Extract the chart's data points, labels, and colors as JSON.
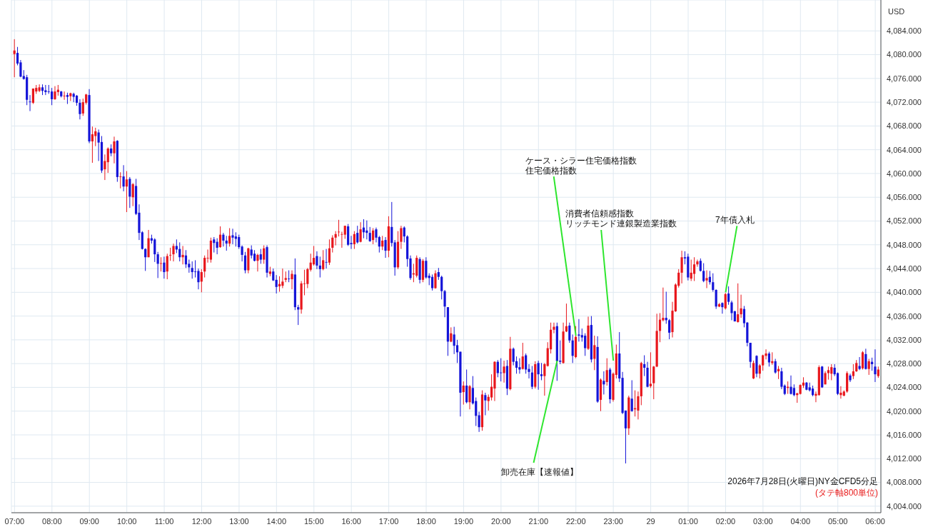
{
  "chart_data": {
    "type": "candlestick",
    "ylabel": "USD",
    "grid": true,
    "colors": [
      "#e8161c",
      "#1414d8",
      "#1414d8",
      "#1414d8",
      "#1414d8",
      "#1414d8",
      "#e8161c",
      "#e8161c",
      "#e8161c",
      "#1414d8",
      "#1414d8",
      "#1414d8",
      "#1414d8",
      "#e8161c",
      "#e8161c",
      "#1414d8",
      "#e8161c",
      "#1414d8",
      "#e8161c",
      "#1414d8",
      "#1414d8",
      "#1414d8",
      "#e8161c",
      "#e8161c",
      "#1414d8",
      "#e8161c",
      "#e8161c",
      "#1414d8",
      "#1414d8",
      "#e8161c",
      "#e8161c",
      "#1414d8",
      "#e8161c",
      "#1414d8",
      "#e8161c",
      "#1414d8",
      "#e8161c",
      "#1414d8",
      "#e8161c",
      "#1414d8",
      "#1414d8",
      "#1414d8",
      "#1414d8",
      "#e8161c",
      "#1414d8",
      "#1414d8",
      "#1414d8",
      "#e8161c",
      "#1414d8",
      "#e8161c",
      "#e8161c",
      "#e8161c",
      "#1414d8",
      "#1414d8",
      "#e8161c",
      "#1414d8",
      "#1414d8",
      "#1414d8",
      "#1414d8",
      "#1414d8",
      "#e8161c",
      "#e8161c",
      "#e8161c",
      "#e8161c",
      "#1414d8",
      "#1414d8",
      "#e8161c",
      "#1414d8",
      "#1414d8",
      "#e8161c",
      "#1414d8",
      "#1414d8",
      "#1414d8",
      "#1414d8",
      "#1414d8",
      "#e8161c",
      "#1414d8",
      "#1414d8",
      "#e8161c",
      "#1414d8",
      "#e8161c",
      "#1414d8",
      "#e8161c",
      "#1414d8",
      "#1414d8",
      "#e8161c",
      "#e8161c",
      "#e8161c",
      "#1414d8",
      "#e8161c",
      "#1414d8",
      "#1414d8",
      "#e8161c",
      "#e8161c",
      "#e8161c",
      "#e8161c",
      "#e8161c",
      "#1414d8",
      "#1414d8",
      "#e8161c",
      "#1414d8",
      "#e8161c",
      "#e8161c",
      "#e8161c",
      "#e8161c",
      "#e8161c",
      "#e8161c",
      "#1414d8",
      "#1414d8",
      "#e8161c",
      "#1414d8",
      "#e8161c",
      "#1414d8",
      "#1414d8",
      "#1414d8",
      "#e8161c",
      "#1414d8",
      "#1414d8",
      "#e8161c",
      "#1414d8",
      "#e8161c",
      "#1414d8",
      "#1414d8",
      "#e8161c",
      "#e8161c",
      "#1414d8",
      "#1414d8",
      "#1414d8",
      "#e8161c",
      "#e8161c",
      "#1414d8",
      "#e8161c",
      "#1414d8",
      "#1414d8",
      "#1414d8",
      "#e8161c",
      "#1414d8",
      "#1414d8",
      "#1414d8",
      "#1414d8",
      "#e8161c",
      "#1414d8",
      "#1414d8",
      "#1414d8",
      "#e8161c",
      "#1414d8",
      "#e8161c",
      "#1414d8",
      "#1414d8",
      "#1414d8",
      "#e8161c",
      "#1414d8",
      "#e8161c",
      "#e8161c",
      "#e8161c",
      "#1414d8",
      "#1414d8",
      "#e8161c",
      "#1414d8",
      "#e8161c",
      "#1414d8",
      "#1414d8",
      "#1414d8",
      "#e8161c",
      "#1414d8",
      "#1414d8",
      "#1414d8",
      "#e8161c",
      "#1414d8",
      "#1414d8",
      "#e8161c",
      "#e8161c",
      "#e8161c",
      "#e8161c",
      "#1414d8",
      "#1414d8",
      "#e8161c",
      "#e8161c",
      "#1414d8",
      "#1414d8",
      "#e8161c",
      "#1414d8",
      "#1414d8",
      "#1414d8",
      "#e8161c",
      "#1414d8",
      "#e8161c",
      "#1414d8",
      "#e8161c",
      "#1414d8",
      "#e8161c",
      "#1414d8",
      "#e8161c",
      "#e8161c",
      "#1414d8",
      "#1414d8",
      "#1414d8",
      "#e8161c",
      "#1414d8",
      "#e8161c",
      "#e8161c",
      "#e8161c",
      "#1414d8",
      "#1414d8",
      "#e8161c",
      "#e8161c",
      "#e8161c",
      "#e8161c",
      "#e8161c",
      "#1414d8",
      "#1414d8",
      "#e8161c",
      "#e8161c",
      "#e8161c",
      "#e8161c",
      "#1414d8",
      "#1414d8",
      "#e8161c",
      "#e8161c",
      "#e8161c",
      "#1414d8",
      "#1414d8",
      "#e8161c",
      "#1414d8",
      "#1414d8",
      "#1414d8",
      "#e8161c",
      "#1414d8",
      "#e8161c",
      "#1414d8",
      "#1414d8",
      "#1414d8",
      "#e8161c",
      "#e8161c",
      "#1414d8",
      "#1414d8",
      "#1414d8",
      "#e8161c",
      "#1414d8",
      "#e8161c",
      "#e8161c",
      "#e8161c",
      "#1414d8",
      "#e8161c",
      "#1414d8",
      "#e8161c",
      "#1414d8",
      "#1414d8",
      "#e8161c",
      "#1414d8",
      "#1414d8",
      "#e8161c",
      "#e8161c",
      "#e8161c",
      "#1414d8",
      "#1414d8",
      "#1414d8",
      "#e8161c",
      "#e8161c",
      "#1414d8",
      "#e8161c",
      "#e8161c",
      "#e8161c",
      "#1414d8",
      "#1414d8",
      "#e8161c",
      "#e8161c",
      "#e8161c",
      "#1414d8",
      "#e8161c",
      "#e8161c",
      "#1414d8",
      "#e8161c",
      "#1414d8",
      "#e8161c",
      "#1414d8",
      "#1414d8",
      "#e8161c"
    ],
    "ylim": [
      4002.9,
      4089.2
    ],
    "yticks": [
      {
        "value": 4004,
        "label": "4,004.000"
      },
      {
        "value": 4008,
        "label": "4,008.000"
      },
      {
        "value": 4012,
        "label": "4,012.000"
      },
      {
        "value": 4016,
        "label": "4,016.000"
      },
      {
        "value": 4020,
        "label": "4,020.000"
      },
      {
        "value": 4024,
        "label": "4,024.000"
      },
      {
        "value": 4028,
        "label": "4,028.000"
      },
      {
        "value": 4032,
        "label": "4,032.000"
      },
      {
        "value": 4036,
        "label": "4,036.000"
      },
      {
        "value": 4040,
        "label": "4,040.000"
      },
      {
        "value": 4044,
        "label": "4,044.000"
      },
      {
        "value": 4048,
        "label": "4,048.000"
      },
      {
        "value": 4052,
        "label": "4,052.000"
      },
      {
        "value": 4056,
        "label": "4,056.000"
      },
      {
        "value": 4060,
        "label": "4,060.000"
      },
      {
        "value": 4064,
        "label": "4,064.000"
      },
      {
        "value": 4068,
        "label": "4,068.000"
      },
      {
        "value": 4072,
        "label": "4,072.000"
      },
      {
        "value": 4076,
        "label": "4,076.000"
      },
      {
        "value": 4080,
        "label": "4,080.000"
      },
      {
        "value": 4084,
        "label": "4,084.000"
      }
    ],
    "xlim": [
      "2026-07-28T06:55",
      "2026-07-29T06:09"
    ],
    "xticks": [
      {
        "value": "2026-07-28T07:00",
        "label": "07:00"
      },
      {
        "value": "2026-07-28T08:00",
        "label": "08:00"
      },
      {
        "value": "2026-07-28T09:00",
        "label": "09:00"
      },
      {
        "value": "2026-07-28T10:00",
        "label": "10:00"
      },
      {
        "value": "2026-07-28T11:00",
        "label": "11:00"
      },
      {
        "value": "2026-07-28T12:00",
        "label": "12:00"
      },
      {
        "value": "2026-07-28T13:00",
        "label": "13:00"
      },
      {
        "value": "2026-07-28T14:00",
        "label": "14:00"
      },
      {
        "value": "2026-07-28T15:00",
        "label": "15:00"
      },
      {
        "value": "2026-07-28T16:00",
        "label": "16:00"
      },
      {
        "value": "2026-07-28T17:00",
        "label": "17:00"
      },
      {
        "value": "2026-07-28T18:00",
        "label": "18:00"
      },
      {
        "value": "2026-07-28T19:00",
        "label": "19:00"
      },
      {
        "value": "2026-07-28T20:00",
        "label": "20:00"
      },
      {
        "value": "2026-07-28T21:00",
        "label": "21:00"
      },
      {
        "value": "2026-07-28T22:00",
        "label": "22:00"
      },
      {
        "value": "2026-07-28T23:00",
        "label": "23:00"
      },
      {
        "value": "2026-07-29T00:00",
        "label": "29"
      },
      {
        "value": "2026-07-29T01:00",
        "label": "01:00"
      },
      {
        "value": "2026-07-29T02:00",
        "label": "02:00"
      },
      {
        "value": "2026-07-29T03:00",
        "label": "03:00"
      },
      {
        "value": "2026-07-29T04:00",
        "label": "04:00"
      },
      {
        "value": "2026-07-29T05:00",
        "label": "05:00"
      },
      {
        "value": "2026-07-29T06:00",
        "label": "06:00"
      }
    ],
    "annotations": [
      {
        "text": "卸売在庫【速報値】",
        "x": "2026-07-28T21:30",
        "y": 4028.5
      },
      {
        "text": "住宅価格指数",
        "x": "2026-07-28T22:00",
        "y": 4032.7
      },
      {
        "text": "リッチモンド連銀製造業指数",
        "x": "2026-07-28T23:00",
        "y": 4028.5
      },
      {
        "text": "7年債入札",
        "x": "2026-07-29T02:00",
        "y": 4040
      },
      "ケース・シラー住宅価格指数",
      "消費者信頼感指数",
      "2026年7月28日(火曜日)NY金CFD5分足",
      "(タテ軸800単位)"
    ],
    "x": [
      "2026-07-28T07:00",
      "2026-07-28T07:05",
      "2026-07-28T07:10",
      "2026-07-28T07:15",
      "2026-07-28T07:20",
      "2026-07-28T07:25",
      "2026-07-28T07:30",
      "2026-07-28T07:35",
      "2026-07-28T07:40",
      "2026-07-28T07:45",
      "2026-07-28T07:50",
      "2026-07-28T07:55",
      "2026-07-28T08:00",
      "2026-07-28T08:05",
      "2026-07-28T08:10",
      "2026-07-28T08:15",
      "2026-07-28T08:20",
      "2026-07-28T08:25",
      "2026-07-28T08:30",
      "2026-07-28T08:35",
      "2026-07-28T08:40",
      "2026-07-28T08:45",
      "2026-07-28T08:50",
      "2026-07-28T08:55",
      "2026-07-28T09:00",
      "2026-07-28T09:05",
      "2026-07-28T09:10",
      "2026-07-28T09:15",
      "2026-07-28T09:20",
      "2026-07-28T09:25",
      "2026-07-28T09:30",
      "2026-07-28T09:35",
      "2026-07-28T09:40",
      "2026-07-28T09:45",
      "2026-07-28T09:50",
      "2026-07-28T09:55",
      "2026-07-28T10:00",
      "2026-07-28T10:05",
      "2026-07-28T10:10",
      "2026-07-28T10:15",
      "2026-07-28T10:20",
      "2026-07-28T10:25",
      "2026-07-28T10:30",
      "2026-07-28T10:35",
      "2026-07-28T10:40",
      "2026-07-28T10:45",
      "2026-07-28T10:50",
      "2026-07-28T10:55",
      "2026-07-28T11:00",
      "2026-07-28T11:05",
      "2026-07-28T11:10",
      "2026-07-28T11:15",
      "2026-07-28T11:20",
      "2026-07-28T11:25",
      "2026-07-28T11:30",
      "2026-07-28T11:35",
      "2026-07-28T11:40",
      "2026-07-28T11:45",
      "2026-07-28T11:50",
      "2026-07-28T11:55",
      "2026-07-28T12:00",
      "2026-07-28T12:05",
      "2026-07-28T12:10",
      "2026-07-28T12:15",
      "2026-07-28T12:20",
      "2026-07-28T12:25",
      "2026-07-28T12:30",
      "2026-07-28T12:35",
      "2026-07-28T12:40",
      "2026-07-28T12:45",
      "2026-07-28T12:50",
      "2026-07-28T12:55",
      "2026-07-28T13:00",
      "2026-07-28T13:05",
      "2026-07-28T13:10",
      "2026-07-28T13:15",
      "2026-07-28T13:20",
      "2026-07-28T13:25",
      "2026-07-28T13:30",
      "2026-07-28T13:35",
      "2026-07-28T13:40",
      "2026-07-28T13:45",
      "2026-07-28T13:50",
      "2026-07-28T13:55",
      "2026-07-28T14:00",
      "2026-07-28T14:05",
      "2026-07-28T14:10",
      "2026-07-28T14:15",
      "2026-07-28T14:20",
      "2026-07-28T14:25",
      "2026-07-28T14:30",
      "2026-07-28T14:35",
      "2026-07-28T14:40",
      "2026-07-28T14:45",
      "2026-07-28T14:50",
      "2026-07-28T14:55",
      "2026-07-28T15:00",
      "2026-07-28T15:05",
      "2026-07-28T15:10",
      "2026-07-28T15:15",
      "2026-07-28T15:20",
      "2026-07-28T15:25",
      "2026-07-28T15:30",
      "2026-07-28T15:35",
      "2026-07-28T15:40",
      "2026-07-28T15:45",
      "2026-07-28T15:50",
      "2026-07-28T15:55",
      "2026-07-28T16:00",
      "2026-07-28T16:05",
      "2026-07-28T16:10",
      "2026-07-28T16:15",
      "2026-07-28T16:20",
      "2026-07-28T16:25",
      "2026-07-28T16:30",
      "2026-07-28T16:35",
      "2026-07-28T16:40",
      "2026-07-28T16:45",
      "2026-07-28T16:50",
      "2026-07-28T16:55",
      "2026-07-28T17:00",
      "2026-07-28T17:05",
      "2026-07-28T17:10",
      "2026-07-28T17:15",
      "2026-07-28T17:20",
      "2026-07-28T17:25",
      "2026-07-28T17:30",
      "2026-07-28T17:35",
      "2026-07-28T17:40",
      "2026-07-28T17:45",
      "2026-07-28T17:50",
      "2026-07-28T17:55",
      "2026-07-28T18:00",
      "2026-07-28T18:05",
      "2026-07-28T18:10",
      "2026-07-28T18:15",
      "2026-07-28T18:20",
      "2026-07-28T18:25",
      "2026-07-28T18:30",
      "2026-07-28T18:35",
      "2026-07-28T18:40",
      "2026-07-28T18:45",
      "2026-07-28T18:50",
      "2026-07-28T18:55",
      "2026-07-28T19:00",
      "2026-07-28T19:05",
      "2026-07-28T19:10",
      "2026-07-28T19:15",
      "2026-07-28T19:20",
      "2026-07-28T19:25",
      "2026-07-28T19:30",
      "2026-07-28T19:35",
      "2026-07-28T19:40",
      "2026-07-28T19:45",
      "2026-07-28T19:50",
      "2026-07-28T19:55",
      "2026-07-28T20:00",
      "2026-07-28T20:05",
      "2026-07-28T20:10",
      "2026-07-28T20:15",
      "2026-07-28T20:20",
      "2026-07-28T20:25",
      "2026-07-28T20:30",
      "2026-07-28T20:35",
      "2026-07-28T20:40",
      "2026-07-28T20:45",
      "2026-07-28T20:50",
      "2026-07-28T20:55",
      "2026-07-28T21:00",
      "2026-07-28T21:05",
      "2026-07-28T21:10",
      "2026-07-28T21:15",
      "2026-07-28T21:20",
      "2026-07-28T21:25",
      "2026-07-28T21:30",
      "2026-07-28T21:35",
      "2026-07-28T21:40",
      "2026-07-28T21:45",
      "2026-07-28T21:50",
      "2026-07-28T21:55",
      "2026-07-28T22:00",
      "2026-07-28T22:05",
      "2026-07-28T22:10",
      "2026-07-28T22:15",
      "2026-07-28T22:20",
      "2026-07-28T22:25",
      "2026-07-28T22:30",
      "2026-07-28T22:35",
      "2026-07-28T22:40",
      "2026-07-28T22:45",
      "2026-07-28T22:50",
      "2026-07-28T22:55",
      "2026-07-28T23:00",
      "2026-07-28T23:05",
      "2026-07-28T23:10",
      "2026-07-28T23:15",
      "2026-07-28T23:20",
      "2026-07-28T23:25",
      "2026-07-28T23:30",
      "2026-07-28T23:35",
      "2026-07-28T23:40",
      "2026-07-28T23:45",
      "2026-07-28T23:50",
      "2026-07-28T23:55",
      "2026-07-29T00:00",
      "2026-07-29T00:05",
      "2026-07-29T00:10",
      "2026-07-29T00:15",
      "2026-07-29T00:20",
      "2026-07-29T00:25",
      "2026-07-29T00:30",
      "2026-07-29T00:35",
      "2026-07-29T00:40",
      "2026-07-29T00:45",
      "2026-07-29T00:50",
      "2026-07-29T00:55",
      "2026-07-29T01:00",
      "2026-07-29T01:05",
      "2026-07-29T01:10",
      "2026-07-29T01:15",
      "2026-07-29T01:20",
      "2026-07-29T01:25",
      "2026-07-29T01:30",
      "2026-07-29T01:35",
      "2026-07-29T01:40",
      "2026-07-29T01:45",
      "2026-07-29T01:50",
      "2026-07-29T01:55",
      "2026-07-29T02:00",
      "2026-07-29T02:05",
      "2026-07-29T02:10",
      "2026-07-29T02:15",
      "2026-07-29T02:20",
      "2026-07-29T02:25",
      "2026-07-29T02:30",
      "2026-07-29T02:35",
      "2026-07-29T02:40",
      "2026-07-29T02:45",
      "2026-07-29T02:50",
      "2026-07-29T02:55",
      "2026-07-29T03:00",
      "2026-07-29T03:05",
      "2026-07-29T03:10",
      "2026-07-29T03:15",
      "2026-07-29T03:20",
      "2026-07-29T03:25",
      "2026-07-29T03:30",
      "2026-07-29T03:35",
      "2026-07-29T03:40",
      "2026-07-29T03:45",
      "2026-07-29T03:50",
      "2026-07-29T03:55",
      "2026-07-29T04:00",
      "2026-07-29T04:05",
      "2026-07-29T04:10",
      "2026-07-29T04:15",
      "2026-07-29T04:20",
      "2026-07-29T04:25",
      "2026-07-29T04:30",
      "2026-07-29T04:35",
      "2026-07-29T04:40",
      "2026-07-29T04:45",
      "2026-07-29T04:50",
      "2026-07-29T04:55",
      "2026-07-29T05:00",
      "2026-07-29T05:05",
      "2026-07-29T05:10",
      "2026-07-29T05:15",
      "2026-07-29T05:20",
      "2026-07-29T05:25",
      "2026-07-29T05:30",
      "2026-07-29T05:35",
      "2026-07-29T05:40",
      "2026-07-29T05:45",
      "2026-07-29T05:50",
      "2026-07-29T05:55",
      "2026-07-29T06:00",
      "2026-07-29T06:05"
    ],
    "ohlc": [
      [
        4080.1,
        4082.6,
        4076.2,
        4080.7
      ],
      [
        4080.3,
        4081.3,
        4078.2,
        4078.5
      ],
      [
        4078.7,
        4079.1,
        4076.2,
        4076.3
      ],
      [
        4076.4,
        4077.4,
        4075.8,
        4075.9
      ],
      [
        4076.2,
        4076.6,
        4071.5,
        4072.4
      ],
      [
        4072.1,
        4073.2,
        4070.5,
        4072.0
      ],
      [
        4071.9,
        4074.3,
        4071.7,
        4074.3
      ],
      [
        4073.8,
        4074.9,
        4073.4,
        4074.4
      ],
      [
        4073.9,
        4075.0,
        4073.7,
        4074.5
      ],
      [
        4074.5,
        4075.0,
        4073.2,
        4073.9
      ],
      [
        4074.0,
        4074.9,
        4073.2,
        4073.7
      ],
      [
        4073.8,
        4074.9,
        4073.4,
        4073.7
      ],
      [
        4073.8,
        4074.4,
        4071.5,
        4072.5
      ],
      [
        4072.5,
        4074.7,
        4072.4,
        4073.8
      ],
      [
        4073.7,
        4074.9,
        4073.1,
        4074.1
      ],
      [
        4073.8,
        4073.9,
        4072.8,
        4073.0
      ],
      [
        4073.0,
        4073.8,
        4072.4,
        4073.1
      ],
      [
        4073.2,
        4073.6,
        4071.7,
        4072.9
      ],
      [
        4073.0,
        4073.6,
        4072.2,
        4073.5
      ],
      [
        4073.4,
        4073.6,
        4072.0,
        4072.9
      ],
      [
        4073.1,
        4073.2,
        4071.4,
        4071.9
      ],
      [
        4071.9,
        4072.5,
        4069.1,
        4070.0
      ],
      [
        4070.1,
        4072.6,
        4069.7,
        4072.0
      ],
      [
        4071.9,
        4073.4,
        4071.6,
        4073.3
      ],
      [
        4073.2,
        4074.2,
        4065.1,
        4065.4
      ],
      [
        4065.4,
        4067.9,
        4061.8,
        4066.6
      ],
      [
        4066.3,
        4067.7,
        4064.6,
        4067.1
      ],
      [
        4066.9,
        4067.4,
        4062.1,
        4065.2
      ],
      [
        4065.3,
        4066.3,
        4060.1,
        4060.5
      ],
      [
        4060.7,
        4063.2,
        4058.9,
        4062.1
      ],
      [
        4061.9,
        4064.4,
        4060.1,
        4064.2
      ],
      [
        4064.2,
        4064.9,
        4062.9,
        4063.4
      ],
      [
        4063.4,
        4066.2,
        4061.7,
        4065.4
      ],
      [
        4065.5,
        4065.6,
        4058.6,
        4059.4
      ],
      [
        4059.4,
        4060.2,
        4057.5,
        4059.5
      ],
      [
        4059.5,
        4061.4,
        4057.0,
        4057.8
      ],
      [
        4057.8,
        4060.4,
        4053.5,
        4059.0
      ],
      [
        4059.1,
        4059.4,
        4054.2,
        4056.1
      ],
      [
        4056.0,
        4058.4,
        4054.5,
        4058.2
      ],
      [
        4057.9,
        4059.1,
        4053.0,
        4053.2
      ],
      [
        4053.4,
        4054.8,
        4048.8,
        4050.0
      ],
      [
        4050.1,
        4050.3,
        4047.2,
        4047.3
      ],
      [
        4047.3,
        4047.4,
        4043.6,
        4045.9
      ],
      [
        4045.9,
        4050.5,
        4045.9,
        4049.1
      ],
      [
        4049.1,
        4049.7,
        4048.2,
        4048.7
      ],
      [
        4048.9,
        4049.1,
        4045.1,
        4046.4
      ],
      [
        4046.4,
        4046.8,
        4042.4,
        4044.8
      ],
      [
        4044.8,
        4045.9,
        4043.5,
        4044.9
      ],
      [
        4045.0,
        4046.0,
        4042.3,
        4043.4
      ],
      [
        4043.5,
        4046.5,
        4042.2,
        4046.1
      ],
      [
        4046.2,
        4047.5,
        4045.3,
        4046.3
      ],
      [
        4046.4,
        4048.2,
        4045.2,
        4047.8
      ],
      [
        4047.8,
        4048.9,
        4046.6,
        4047.2
      ],
      [
        4047.3,
        4048.4,
        4045.2,
        4045.9
      ],
      [
        4045.9,
        4047.8,
        4044.7,
        4046.3
      ],
      [
        4046.2,
        4047.1,
        4044.1,
        4044.7
      ],
      [
        4044.8,
        4045.5,
        4043.3,
        4044.2
      ],
      [
        4044.1,
        4045.2,
        4042.3,
        4043.4
      ],
      [
        4043.5,
        4045.4,
        4042.5,
        4043.4
      ],
      [
        4043.6,
        4044.0,
        4040.5,
        4041.7
      ],
      [
        4041.8,
        4043.9,
        4040.0,
        4043.4
      ],
      [
        4043.5,
        4046.2,
        4042.5,
        4045.8
      ],
      [
        4045.7,
        4047.2,
        4045.0,
        4045.8
      ],
      [
        4045.5,
        4049.2,
        4045.0,
        4048.7
      ],
      [
        4048.9,
        4049.3,
        4046.7,
        4048.3
      ],
      [
        4048.5,
        4049.1,
        4046.4,
        4047.5
      ],
      [
        4047.6,
        4051.1,
        4047.5,
        4049.7
      ],
      [
        4049.7,
        4050.0,
        4047.7,
        4048.7
      ],
      [
        4048.7,
        4049.5,
        4047.0,
        4048.2
      ],
      [
        4048.2,
        4050.8,
        4047.7,
        4049.5
      ],
      [
        4049.6,
        4050.7,
        4048.1,
        4049.2
      ],
      [
        4049.4,
        4050.1,
        4047.7,
        4049.0
      ],
      [
        4049.3,
        4049.7,
        4047.3,
        4047.6
      ],
      [
        4047.7,
        4047.9,
        4045.2,
        4046.3
      ],
      [
        4046.2,
        4046.8,
        4043.2,
        4043.7
      ],
      [
        4043.7,
        4047.5,
        4043.2,
        4047.4
      ],
      [
        4047.2,
        4047.9,
        4045.7,
        4046.2
      ],
      [
        4046.5,
        4047.1,
        4045.2,
        4045.3
      ],
      [
        4045.3,
        4046.5,
        4043.5,
        4046.3
      ],
      [
        4046.4,
        4047.3,
        4044.8,
        4045.5
      ],
      [
        4045.5,
        4047.9,
        4044.8,
        4047.4
      ],
      [
        4047.6,
        4047.9,
        4042.5,
        4043.3
      ],
      [
        4043.1,
        4044.3,
        4042.7,
        4043.5
      ],
      [
        4043.5,
        4044.0,
        4041.9,
        4042.0
      ],
      [
        4042.1,
        4042.9,
        4039.8,
        4040.9
      ],
      [
        4041.0,
        4042.7,
        4040.1,
        4041.4
      ],
      [
        4041.1,
        4044.0,
        4040.7,
        4041.8
      ],
      [
        4042.1,
        4043.5,
        4041.7,
        4042.4
      ],
      [
        4042.3,
        4043.7,
        4041.7,
        4042.2
      ],
      [
        4042.2,
        4043.7,
        4040.5,
        4043.1
      ],
      [
        4043.0,
        4045.7,
        4037.0,
        4037.5
      ],
      [
        4037.5,
        4037.9,
        4034.5,
        4037.1
      ],
      [
        4037.1,
        4041.9,
        4036.4,
        4041.5
      ],
      [
        4041.4,
        4043.8,
        4039.5,
        4041.5
      ],
      [
        4041.4,
        4044.1,
        4040.7,
        4043.9
      ],
      [
        4043.8,
        4046.5,
        4043.5,
        4045.0
      ],
      [
        4044.7,
        4047.8,
        4044.5,
        4045.8
      ],
      [
        4046.1,
        4046.9,
        4043.9,
        4044.5
      ],
      [
        4044.5,
        4046.0,
        4042.5,
        4043.9
      ],
      [
        4043.9,
        4047.1,
        4043.7,
        4045.4
      ],
      [
        4045.1,
        4047.3,
        4044.0,
        4045.0
      ],
      [
        4045.0,
        4048.9,
        4044.6,
        4047.4
      ],
      [
        4047.5,
        4049.6,
        4046.7,
        4049.2
      ],
      [
        4049.2,
        4050.3,
        4047.9,
        4049.8
      ],
      [
        4050.1,
        4052.2,
        4049.4,
        4050.2
      ],
      [
        4049.7,
        4050.2,
        4047.5,
        4049.8
      ],
      [
        4049.7,
        4051.2,
        4049.0,
        4051.2
      ],
      [
        4051.1,
        4051.5,
        4047.8,
        4048.0
      ],
      [
        4048.3,
        4049.5,
        4047.3,
        4048.1
      ],
      [
        4048.1,
        4050.3,
        4047.3,
        4049.8
      ],
      [
        4050.0,
        4051.2,
        4048.2,
        4048.4
      ],
      [
        4048.5,
        4051.8,
        4048.4,
        4050.6
      ],
      [
        4050.9,
        4052.3,
        4049.1,
        4050.1
      ],
      [
        4050.4,
        4052.1,
        4048.9,
        4050.0
      ],
      [
        4050.0,
        4051.0,
        4048.5,
        4048.6
      ],
      [
        4048.8,
        4050.8,
        4048.1,
        4050.4
      ],
      [
        4050.6,
        4050.9,
        4048.4,
        4049.2
      ],
      [
        4049.3,
        4049.5,
        4046.7,
        4047.7
      ],
      [
        4047.7,
        4049.5,
        4047.1,
        4048.7
      ],
      [
        4048.8,
        4049.3,
        4045.8,
        4047.0
      ],
      [
        4047.0,
        4052.8,
        4045.9,
        4051.1
      ],
      [
        4051.0,
        4055.2,
        4047.7,
        4048.3
      ],
      [
        4048.4,
        4048.8,
        4042.8,
        4044.2
      ],
      [
        4044.2,
        4050.3,
        4043.9,
        4048.5
      ],
      [
        4048.5,
        4051.2,
        4047.3,
        4050.8
      ],
      [
        4050.9,
        4051.1,
        4048.4,
        4049.4
      ],
      [
        4049.4,
        4049.6,
        4044.3,
        4045.6
      ],
      [
        4045.7,
        4046.2,
        4042.1,
        4042.4
      ],
      [
        4043.0,
        4044.8,
        4041.7,
        4043.2
      ],
      [
        4042.8,
        4046.2,
        4042.5,
        4045.8
      ],
      [
        4045.6,
        4045.9,
        4041.5,
        4042.1
      ],
      [
        4042.1,
        4045.6,
        4041.7,
        4045.3
      ],
      [
        4045.3,
        4045.9,
        4042.3,
        4042.5
      ],
      [
        4042.8,
        4043.2,
        4041.2,
        4042.4
      ],
      [
        4042.6,
        4043.0,
        4040.3,
        4040.7
      ],
      [
        4040.7,
        4043.7,
        4040.6,
        4043.2
      ],
      [
        4043.4,
        4044.1,
        4042.1,
        4042.6
      ],
      [
        4042.6,
        4042.8,
        4038.8,
        4040.2
      ],
      [
        4040.2,
        4040.4,
        4035.8,
        4037.6
      ],
      [
        4037.5,
        4037.5,
        4029.3,
        4031.7
      ],
      [
        4031.7,
        4034.1,
        4031.6,
        4033.1
      ],
      [
        4032.9,
        4034.2,
        4029.6,
        4031.0
      ],
      [
        4031.1,
        4032.0,
        4028.1,
        4029.9
      ],
      [
        4030.0,
        4030.0,
        4019.1,
        4023.1
      ],
      [
        4023.2,
        4025.0,
        4021.1,
        4024.3
      ],
      [
        4024.3,
        4027.0,
        4021.3,
        4021.5
      ],
      [
        4021.5,
        4024.4,
        4020.3,
        4024.2
      ],
      [
        4023.9,
        4025.9,
        4021.1,
        4021.3
      ],
      [
        4021.7,
        4022.3,
        4017.5,
        4019.2
      ],
      [
        4019.3,
        4019.9,
        4016.5,
        4017.3
      ],
      [
        4017.3,
        4023.5,
        4016.7,
        4022.8
      ],
      [
        4022.7,
        4023.1,
        4019.3,
        4021.8
      ],
      [
        4021.7,
        4022.8,
        4020.1,
        4022.4
      ],
      [
        4022.3,
        4026.2,
        4021.8,
        4024.1
      ],
      [
        4023.8,
        4028.4,
        4021.7,
        4028.3
      ],
      [
        4028.3,
        4028.6,
        4025.7,
        4026.4
      ],
      [
        4026.5,
        4028.9,
        4025.0,
        4026.4
      ],
      [
        4026.4,
        4028.5,
        4024.8,
        4027.5
      ],
      [
        4027.6,
        4028.6,
        4022.7,
        4023.8
      ],
      [
        4023.7,
        4032.5,
        4023.5,
        4030.5
      ],
      [
        4030.5,
        4030.7,
        4027.7,
        4028.3
      ],
      [
        4028.4,
        4029.2,
        4026.3,
        4027.3
      ],
      [
        4027.4,
        4028.9,
        4026.3,
        4027.0
      ],
      [
        4027.1,
        4031.5,
        4027.0,
        4029.2
      ],
      [
        4029.4,
        4029.7,
        4026.3,
        4027.0
      ],
      [
        4027.1,
        4027.9,
        4025.5,
        4026.6
      ],
      [
        4026.5,
        4027.6,
        4023.7,
        4024.1
      ],
      [
        4024.1,
        4028.4,
        4023.8,
        4027.9
      ],
      [
        4028.1,
        4028.5,
        4023.6,
        4026.2
      ],
      [
        4026.2,
        4028.1,
        4025.2,
        4025.9
      ],
      [
        4025.9,
        4028.1,
        4022.6,
        4027.9
      ],
      [
        4027.6,
        4031.6,
        4027.5,
        4030.6
      ],
      [
        4030.4,
        4034.9,
        4029.7,
        4033.7
      ],
      [
        4033.7,
        4034.9,
        4033.1,
        4034.2
      ],
      [
        4034.3,
        4034.9,
        4025.1,
        4028.4
      ],
      [
        4028.5,
        4031.9,
        4027.9,
        4028.3
      ],
      [
        4028.1,
        4034.9,
        4028.0,
        4033.4
      ],
      [
        4033.4,
        4038.1,
        4033.3,
        4034.3
      ],
      [
        4034.4,
        4034.9,
        4031.5,
        4031.9
      ],
      [
        4031.9,
        4032.9,
        4028.1,
        4029.3
      ],
      [
        4029.1,
        4034.3,
        4028.9,
        4032.5
      ],
      [
        4032.9,
        4035.5,
        4031.7,
        4032.7
      ],
      [
        4032.8,
        4033.9,
        4031.7,
        4032.4
      ],
      [
        4032.7,
        4033.1,
        4029.3,
        4030.6
      ],
      [
        4030.5,
        4035.9,
        4030.3,
        4034.4
      ],
      [
        4034.5,
        4036.0,
        4028.2,
        4028.7
      ],
      [
        4028.8,
        4032.7,
        4026.9,
        4031.1
      ],
      [
        4030.8,
        4032.6,
        4021.4,
        4021.6
      ],
      [
        4021.9,
        4025.5,
        4020.0,
        4025.3
      ],
      [
        4025.1,
        4026.7,
        4022.8,
        4024.5
      ],
      [
        4024.9,
        4028.9,
        4024.3,
        4026.9
      ],
      [
        4027.0,
        4027.3,
        4021.3,
        4022.0
      ],
      [
        4021.9,
        4026.5,
        4021.6,
        4026.3
      ],
      [
        4026.1,
        4031.2,
        4025.5,
        4029.7
      ],
      [
        4029.7,
        4033.3,
        4024.9,
        4025.5
      ],
      [
        4025.6,
        4026.6,
        4019.5,
        4019.7
      ],
      [
        4020.1,
        4020.1,
        4011.2,
        4017.1
      ],
      [
        4017.1,
        4022.6,
        4016.0,
        4022.3
      ],
      [
        4022.1,
        4025.2,
        4019.9,
        4020.0
      ],
      [
        4020.3,
        4023.5,
        4019.1,
        4020.5
      ],
      [
        4020.1,
        4023.3,
        4018.6,
        4022.5
      ],
      [
        4022.5,
        4028.3,
        4021.0,
        4028.1
      ],
      [
        4027.9,
        4029.4,
        4025.9,
        4027.3
      ],
      [
        4027.3,
        4028.3,
        4024.0,
        4024.1
      ],
      [
        4024.2,
        4029.9,
        4023.9,
        4024.6
      ],
      [
        4024.7,
        4027.6,
        4022.0,
        4027.5
      ],
      [
        4027.5,
        4036.4,
        4027.4,
        4033.5
      ],
      [
        4033.5,
        4036.5,
        4031.6,
        4035.4
      ],
      [
        4035.3,
        4040.8,
        4035.1,
        4035.7
      ],
      [
        4035.7,
        4040.1,
        4034.7,
        4035.3
      ],
      [
        4035.3,
        4035.5,
        4032.1,
        4033.2
      ],
      [
        4033.3,
        4038.4,
        4032.4,
        4036.9
      ],
      [
        4036.8,
        4041.5,
        4036.7,
        4041.3
      ],
      [
        4041.1,
        4043.9,
        4040.8,
        4043.3
      ],
      [
        4043.3,
        4047.0,
        4041.5,
        4045.9
      ],
      [
        4045.9,
        4046.9,
        4044.7,
        4045.7
      ],
      [
        4046.0,
        4046.5,
        4042.0,
        4042.5
      ],
      [
        4042.3,
        4045.5,
        4041.9,
        4043.3
      ],
      [
        4043.1,
        4045.9,
        4041.9,
        4044.7
      ],
      [
        4044.7,
        4045.5,
        4044.3,
        4045.2
      ],
      [
        4045.3,
        4045.7,
        4043.5,
        4043.6
      ],
      [
        4043.6,
        4044.9,
        4041.7,
        4041.9
      ],
      [
        4042.0,
        4043.7,
        4040.7,
        4042.4
      ],
      [
        4042.6,
        4043.6,
        4041.3,
        4041.7
      ],
      [
        4041.7,
        4043.2,
        4040.1,
        4040.4
      ],
      [
        4040.4,
        4040.5,
        4037.2,
        4037.6
      ],
      [
        4037.6,
        4038.2,
        4037.5,
        4038.0
      ],
      [
        4038.2,
        4038.3,
        4036.4,
        4037.5
      ],
      [
        4037.3,
        4039.9,
        4037.1,
        4039.7
      ],
      [
        4039.8,
        4041.0,
        4037.9,
        4038.4
      ],
      [
        4038.3,
        4038.6,
        4035.3,
        4036.5
      ],
      [
        4036.8,
        4036.9,
        4035.1,
        4035.1
      ],
      [
        4035.0,
        4041.5,
        4034.9,
        4036.3
      ],
      [
        4036.3,
        4039.6,
        4035.7,
        4037.3
      ],
      [
        4037.2,
        4037.7,
        4034.1,
        4034.8
      ],
      [
        4034.9,
        4035.0,
        4030.9,
        4031.5
      ],
      [
        4031.5,
        4031.5,
        4027.3,
        4028.3
      ],
      [
        4025.5,
        4028.5,
        4025.4,
        4028.1
      ],
      [
        4029.3,
        4029.4,
        4025.7,
        4026.3
      ],
      [
        4026.3,
        4027.9,
        4025.5,
        4027.7
      ],
      [
        4027.7,
        4029.5,
        4026.8,
        4029.4
      ],
      [
        4029.3,
        4030.4,
        4028.7,
        4029.7
      ],
      [
        4029.7,
        4030.0,
        4027.5,
        4028.2
      ],
      [
        4028.1,
        4029.9,
        4027.8,
        4028.4
      ],
      [
        4028.4,
        4028.8,
        4026.3,
        4026.5
      ],
      [
        4026.7,
        4027.6,
        4025.4,
        4027.1
      ],
      [
        4026.7,
        4027.3,
        4023.7,
        4024.1
      ],
      [
        4024.3,
        4024.5,
        4022.7,
        4022.9
      ],
      [
        4023.9,
        4025.0,
        4022.9,
        4024.1
      ],
      [
        4024.1,
        4026.0,
        4022.8,
        4022.9
      ],
      [
        4023.9,
        4024.5,
        4022.5,
        4022.7
      ],
      [
        4022.7,
        4023.1,
        4021.4,
        4023.0
      ],
      [
        4022.9,
        4024.5,
        4022.8,
        4024.4
      ],
      [
        4024.3,
        4025.7,
        4023.9,
        4024.8
      ],
      [
        4024.8,
        4024.9,
        4023.5,
        4023.6
      ],
      [
        4024.0,
        4024.8,
        4023.3,
        4023.5
      ],
      [
        4023.8,
        4024.3,
        4022.5,
        4022.7
      ],
      [
        4022.6,
        4023.3,
        4021.5,
        4022.9
      ],
      [
        4022.7,
        4027.7,
        4022.6,
        4027.4
      ],
      [
        4027.5,
        4027.6,
        4023.9,
        4024.0
      ],
      [
        4024.5,
        4026.7,
        4024.5,
        4026.4
      ],
      [
        4026.4,
        4027.5,
        4025.3,
        4026.9
      ],
      [
        4026.3,
        4027.9,
        4025.2,
        4027.4
      ],
      [
        4027.3,
        4027.9,
        4025.9,
        4026.2
      ],
      [
        4026.4,
        4026.5,
        4022.7,
        4022.9
      ],
      [
        4022.7,
        4024.2,
        4022.1,
        4023.1
      ],
      [
        4022.6,
        4023.5,
        4022.5,
        4023.3
      ],
      [
        4023.3,
        4026.7,
        4023.1,
        4026.4
      ],
      [
        4026.0,
        4026.3,
        4024.9,
        4025.2
      ],
      [
        4025.9,
        4027.9,
        4025.4,
        4026.7
      ],
      [
        4026.7,
        4028.6,
        4026.6,
        4028.1
      ],
      [
        4027.6,
        4029.1,
        4026.9,
        4027.1
      ],
      [
        4027.2,
        4030.1,
        4027.0,
        4029.9
      ],
      [
        4029.6,
        4030.5,
        4027.0,
        4027.1
      ],
      [
        4027.1,
        4028.8,
        4026.1,
        4028.4
      ],
      [
        4028.3,
        4029.0,
        4026.8,
        4027.9
      ],
      [
        4027.5,
        4030.4,
        4024.9,
        4026.2
      ],
      [
        4025.9,
        4027.5,
        4025.6,
        4027.0
      ]
    ]
  }
}
